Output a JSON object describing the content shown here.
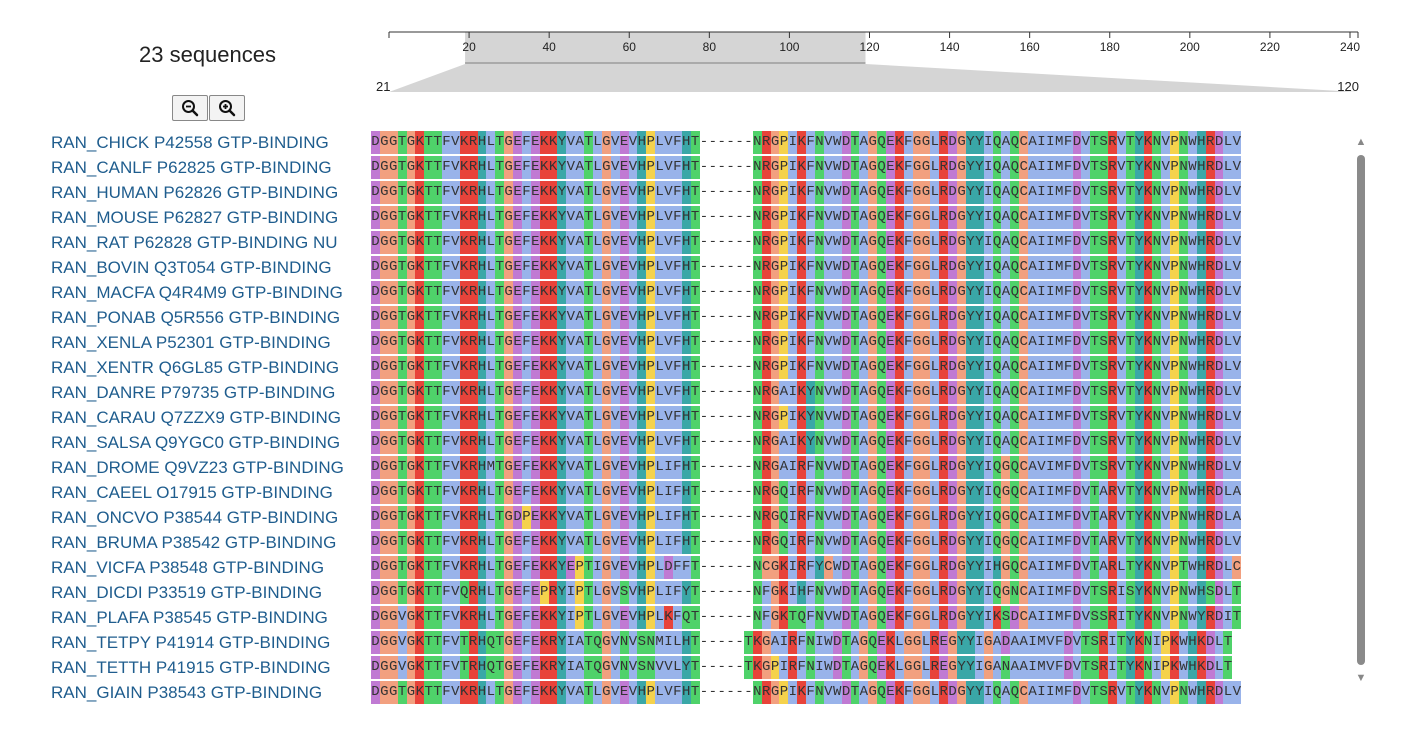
{
  "header": {
    "sequence_count": "23 sequences"
  },
  "zoom": {
    "zoom_out_icon": "magnifier-minus-icon",
    "zoom_in_icon": "magnifier-plus-icon"
  },
  "overview": {
    "ticks": [
      "20",
      "40",
      "60",
      "80",
      "100",
      "120",
      "140",
      "160",
      "180",
      "200",
      "220",
      "240"
    ],
    "range_start": "21",
    "range_end": "120",
    "selection": [
      21,
      120
    ],
    "total_length": 242
  },
  "sequences": [
    "RAN_CHICK P42558 GTP-BINDING",
    "RAN_CANLF P62825 GTP-BINDING",
    "RAN_HUMAN P62826 GTP-BINDING",
    "RAN_MOUSE P62827 GTP-BINDING",
    "RAN_RAT P62828 GTP-BINDING NU",
    "RAN_BOVIN Q3T054 GTP-BINDING",
    "RAN_MACFA Q4R4M9 GTP-BINDING",
    "RAN_PONAB Q5R556 GTP-BINDING",
    "RAN_XENLA P52301 GTP-BINDING",
    "RAN_XENTR Q6GL85 GTP-BINDING",
    "RAN_DANRE P79735 GTP-BINDING",
    "RAN_CARAU Q7ZZX9 GTP-BINDING",
    "RAN_SALSA Q9YGC0 GTP-BINDING",
    "RAN_DROME Q9VZ23 GTP-BINDING",
    "RAN_CAEEL O17915 GTP-BINDING",
    "RAN_ONCVO P38544 GTP-BINDING",
    "RAN_BRUMA P38542 GTP-BINDING",
    "RAN_VICFA P38548 GTP-BINDING",
    "RAN_DICDI P33519 GTP-BINDING",
    "RAN_PLAFA P38545 GTP-BINDING",
    "RAN_TETPY P41914 GTP-BINDING",
    "RAN_TETTH P41915 GTP-BINDING",
    "RAN_GIAIN P38543 GTP-BINDING"
  ],
  "alignment": [
    "DGGTGKTTFVKRHLTGEFEKKYVATLGVEVHPLVFHT------NRGPIKFNVWDTAGQEKFGGLRDGYYIQAQCAIIMFDVTSRVTYKNVPNWHRDLV",
    "DGGTGKTTFVKRHLTGEFEKKYVATLGVEVHPLVFHT------NRGPIKFNVWDTAGQEKFGGLRDGYYIQAQCAIIMFDVTSRVTYKNVPNWHRDLV",
    "DGGTGKTTFVKRHLTGEFEKKYVATLGVEVHPLVFHT------NRGPIKFNVWDTAGQEKFGGLRDGYYIQAQCAIIMFDVTSRVTYKNVPNWHRDLV",
    "DGGTGKTTFVKRHLTGEFEKKYVATLGVEVHPLVFHT------NRGPIKFNVWDTAGQEKFGGLRDGYYIQAQCAIIMFDVTSRVTYKNVPNWHRDLV",
    "DGGTGKTTFVKRHLTGEFEKKYVATLGVEVHPLVFHT------NRGPIKFNVWDTAGQEKFGGLRDGYYIQAQCAIIMFDVTSRVTYKNVPNWHRDLV",
    "DGGTGKTTFVKRHLTGEFEKKYVATLGVEVHPLVFHT------NRGPIKFNVWDTAGQEKFGGLRDGYYIQAQCAIIMFDVTSRVTYKNVPNWHRDLV",
    "DGGTGKTTFVKRHLTGEFEKKYVATLGVEVHPLVFHT------NRGPIKFNVWDTAGQEKFGGLRDGYYIQAQCAIIMFDVTSRVTYKNVPNWHRDLV",
    "DGGTGKTTFVKRHLTGEFEKKYVATLGVEVHPLVFHT------NRGPIKFNVWDTAGQEKFGGLRDGYYIQAQCAIIMFDVTSRVTYKNVPNWHRDLV",
    "DGGTGKTTFVKRHLTGEFEKKYVATLGVEVHPLVFHT------NRGPIKFNVWDTAGQEKFGGLRDGYYIQAQCAIIMFDVTSRVTYKNVPNWHRDLV",
    "DGGTGKTTFVKRHLTGEFEKKYVATLGVEVHPLVFHT------NRGPIKFNVWDTAGQEKFGGLRDGYYIQAQCAIIMFDVTSRVTYKNVPNWHRDLV",
    "DGGTGKTTFVKRHLTGEFEKKYVATLGVEVHPLVFHT------NRGAIKYNVWDTAGQEKFGGLRDGYYIQAQCAIIMFDVTSRVTYKNVPNWHRDLV",
    "DGGTGKTTFVKRHLTGEFEKKYVATLGVEVHPLVFHT------NRGPIKYNVWDTAGQEKFGGLRDGYYIQAQCAIIMFDVTSRVTYKNVPNWHRDLV",
    "DGGTGKTTFVKRHLTGEFEKKYVATLGVEVHPLVFHT------NRGAIKYNVWDTAGQEKFGGLRDGYYIQAQCAIIMFDVTSRVTYKNVPNWHRDLV",
    "DGGTGKTTFVKRHMTGEFEKKYVATLGVEVHPLIFHT------NRGAIRFNVWDTAGQEKFGGLRDGYYIQGQCAVIMFDVTSRVTYKNVPNWHRDLV",
    "DGGTGKTTFVKRHLTGEFEKKYVATLGVEVHPLIFHT------NRGQIRFNVWDTAGQEKFGGLRDGYYIQGQCAIIMFDVTARVTYKNVPNWHRDLA",
    "DGGTGKTTFVKRHLTGDPEKKYVATLGVEVHPLIFHT------NRGQIRFNVWDTAGQEKFGGLRDGYYIQGQCAIIMFDVTARVTYKNVPNWHRDLA",
    "DGGTGKTTFVKRHLTGEFEKKYVATLGVEVHPLIFHT------NRGQIRFNVWDTAGQEKFGGLRDGYYIQGQCAIIMFDVTARVTYKNVPNWHRDLV",
    "DGGTGKTTFVKRHLTGEFEKKYEPTIGVEVHPLDFFT------NCGKIRFYCWDTAGQEKFGGLRDGYYIHGQCAIIMFDVTARLTYKNVPTWHRDLC",
    "DGGTGKTTFVQRHLTGEFEPRYIPTLGVSVHPLIFYT------NFGKIHFNVWDTAGQEKFGGLRDGYYIQGNCAIIMFDVTSRISYKNVPNWHSDLT",
    "DGGVGKTTFVKRHLTGEFEKKYIPTLGVEVHPLKFQT------NFGKTQFNVWDTAGQEKFGGLRDGYYIKSDCAIIMFDVSSRITYKNVPNWYRDIT",
    "DGGVGKTTFVTRHQTGEFEKRYIATQGVNVSNMILHT-----TKGAIRFNIWDTAGQEKLGGLREGYYIGADAAIMVFDVTSRITYKNIPKWHKDLT",
    "DGGVGKTTFVTRHQTGEFEKRYIATQGVNVSNVVLYT-----TKGPIRFNIWDTAGQEKLGGLREGYYIGANAAIMVFDVTSRITYKNIPKWHKDLT",
    "DGGTGKTTFVKRHLTGEFEKKYVATLGVEVHPLVFHT------NRGPIKFNVWDTAGQEKFGGLRDGYYIQAQCAIIMFDVTSRVTYKNVPNWHRDLV"
  ],
  "colors": {
    "A": "#99b3ea",
    "R": "#e8433a",
    "N": "#4fd26a",
    "D": "#c07ad3",
    "C": "#f2a07f",
    "Q": "#4fd26a",
    "E": "#c07ad3",
    "G": "#f2a07f",
    "H": "#3aa7a7",
    "I": "#99b3ea",
    "L": "#99b3ea",
    "K": "#e8433a",
    "M": "#99b3ea",
    "F": "#99b3ea",
    "P": "#f5d24c",
    "S": "#4fd26a",
    "T": "#4fd26a",
    "W": "#99b3ea",
    "Y": "#3aa7a7",
    "V": "#99b3ea",
    "-": "#ffffff",
    "label": "#1f5d8e",
    "scroll_thumb": "#8a8a8a",
    "overview_band": "#d5d5d5"
  }
}
